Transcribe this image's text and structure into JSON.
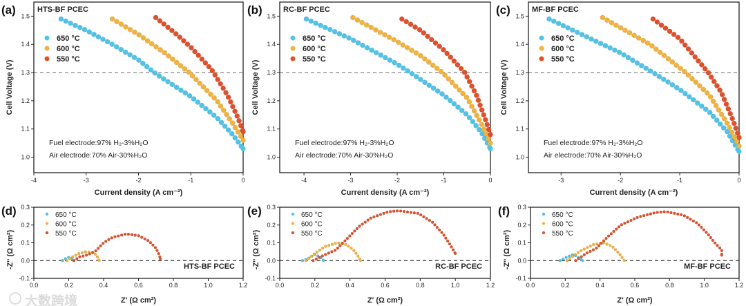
{
  "colors": {
    "650": "#4fc3e8",
    "600": "#f2b33d",
    "550": "#e0502a"
  },
  "watermark": "大数跨境",
  "chart_data": [
    {
      "id": "a",
      "panel_label": "(a)",
      "type": "scatter",
      "title": "HTS-BF PCEC",
      "xlabel": "Current density (A cm⁻²)",
      "ylabel": "Cell Voltage (V)",
      "xlim": [
        -4,
        0
      ],
      "ylim": [
        0.945,
        1.55
      ],
      "xticks": [
        "-4",
        "-3",
        "-2",
        "-1",
        "0"
      ],
      "yticks": [
        "1.0",
        "1.1",
        "1.2",
        "1.3",
        "1.4",
        "1.5"
      ],
      "reference_line": 1.3,
      "annotations": [
        "Fuel electrode:97% H₂-3%H₂O",
        "Air electrode:70% Air-30%H₂O"
      ],
      "series": [
        {
          "name": "650 °C",
          "key": "650",
          "points": [
            [
              -3.48,
              1.49
            ],
            [
              -3,
              1.45
            ],
            [
              -2.5,
              1.4
            ],
            [
              -2,
              1.345
            ],
            [
              -1.7,
              1.3
            ],
            [
              -1.5,
              1.275
            ],
            [
              -1,
              1.215
            ],
            [
              -0.5,
              1.14
            ],
            [
              -0.2,
              1.08
            ],
            [
              0,
              1.03
            ]
          ]
        },
        {
          "name": "600 °C",
          "key": "600",
          "points": [
            [
              -2.5,
              1.49
            ],
            [
              -2,
              1.435
            ],
            [
              -1.5,
              1.37
            ],
            [
              -1.03,
              1.3
            ],
            [
              -0.5,
              1.2
            ],
            [
              -0.2,
              1.12
            ],
            [
              0,
              1.06
            ]
          ]
        },
        {
          "name": "550 °C",
          "key": "550",
          "points": [
            [
              -1.67,
              1.495
            ],
            [
              -1.3,
              1.44
            ],
            [
              -1,
              1.39
            ],
            [
              -0.6,
              1.31
            ],
            [
              -0.3,
              1.22
            ],
            [
              -0.1,
              1.14
            ],
            [
              0,
              1.09
            ]
          ]
        }
      ]
    },
    {
      "id": "b",
      "panel_label": "(b)",
      "type": "scatter",
      "title": "RC-BF PCEC",
      "xlabel": "Current density (A cm⁻²)",
      "ylabel": "Cell Voltage (V)",
      "xlim": [
        -4.52,
        0
      ],
      "ylim": [
        0.945,
        1.55
      ],
      "xticks": [
        "-4",
        "-3",
        "-2",
        "-1",
        "0"
      ],
      "yticks": [
        "1.0",
        "1.1",
        "1.2",
        "1.3",
        "1.4",
        "1.5"
      ],
      "reference_line": 1.3,
      "annotations": [
        "Fuel electrode:97% H₂-3%H₂O",
        "Air electrode:70% Air-30%H₂O"
      ],
      "series": [
        {
          "name": "650 °C",
          "key": "650",
          "points": [
            [
              -3.95,
              1.49
            ],
            [
              -3,
              1.42
            ],
            [
              -2,
              1.33
            ],
            [
              -1.72,
              1.3
            ],
            [
              -1,
              1.22
            ],
            [
              -0.5,
              1.15
            ],
            [
              -0.2,
              1.09
            ],
            [
              0,
              1.03
            ]
          ]
        },
        {
          "name": "600 °C",
          "key": "600",
          "points": [
            [
              -2.95,
              1.495
            ],
            [
              -2,
              1.41
            ],
            [
              -1.5,
              1.36
            ],
            [
              -1.03,
              1.3
            ],
            [
              -0.5,
              1.21
            ],
            [
              -0.2,
              1.12
            ],
            [
              0,
              1.05
            ]
          ]
        },
        {
          "name": "550 °C",
          "key": "550",
          "points": [
            [
              -1.9,
              1.49
            ],
            [
              -1.5,
              1.45
            ],
            [
              -1,
              1.38
            ],
            [
              -0.55,
              1.3
            ],
            [
              -0.3,
              1.22
            ],
            [
              -0.1,
              1.13
            ],
            [
              0,
              1.08
            ]
          ]
        }
      ]
    },
    {
      "id": "c",
      "panel_label": "(c)",
      "type": "scatter",
      "title": "MF-BF PCEC",
      "xlabel": "Current density (A cm⁻²)",
      "ylabel": "Cell Voltage (V)",
      "xlim": [
        -3.55,
        0
      ],
      "ylim": [
        0.945,
        1.55
      ],
      "xticks": [
        "-3",
        "-2",
        "-1",
        "0"
      ],
      "yticks": [
        "1.0",
        "1.1",
        "1.2",
        "1.3",
        "1.4",
        "1.5"
      ],
      "reference_line": 1.3,
      "annotations": [
        "Fuel electrode:97% H₂-3%H₂O",
        "Air electrode:70% Air-30%H₂O"
      ],
      "series": [
        {
          "name": "650 °C",
          "key": "650",
          "points": [
            [
              -3.2,
              1.49
            ],
            [
              -2.5,
              1.42
            ],
            [
              -2,
              1.37
            ],
            [
              -1.45,
              1.3
            ],
            [
              -1,
              1.24
            ],
            [
              -0.5,
              1.16
            ],
            [
              -0.2,
              1.09
            ],
            [
              0,
              1.02
            ]
          ]
        },
        {
          "name": "600 °C",
          "key": "600",
          "points": [
            [
              -2.3,
              1.495
            ],
            [
              -1.5,
              1.4
            ],
            [
              -0.9,
              1.3
            ],
            [
              -0.5,
              1.22
            ],
            [
              -0.2,
              1.12
            ],
            [
              0,
              1.04
            ]
          ]
        },
        {
          "name": "550 °C",
          "key": "550",
          "points": [
            [
              -1.45,
              1.49
            ],
            [
              -1,
              1.42
            ],
            [
              -0.52,
              1.3
            ],
            [
              -0.3,
              1.23
            ],
            [
              -0.1,
              1.13
            ],
            [
              0,
              1.07
            ]
          ]
        }
      ]
    },
    {
      "id": "d",
      "panel_label": "(d)",
      "type": "scatter",
      "title": "HTS-BF PCEC",
      "xlabel": "Z' (Ω cm²)",
      "ylabel": "-Z'' (Ω cm²)",
      "xlim": [
        0,
        1.2
      ],
      "ylim": [
        -0.1,
        0.3
      ],
      "xticks": [
        "0.0",
        "0.2",
        "0.4",
        "0.6",
        "0.8",
        "1.0",
        "1.2"
      ],
      "yticks": [
        "-0.1",
        "0.0",
        "0.1",
        "0.2",
        "0.3"
      ],
      "reference_line": 0,
      "series": [
        {
          "name": "650 °C",
          "key": "650",
          "points": [
            [
              0.165,
              0
            ],
            [
              0.18,
              0.01
            ],
            [
              0.2,
              0.018
            ],
            [
              0.22,
              0.012
            ],
            [
              0.23,
              0
            ]
          ]
        },
        {
          "name": "600 °C",
          "key": "600",
          "points": [
            [
              0.19,
              0
            ],
            [
              0.22,
              0.02
            ],
            [
              0.26,
              0.04
            ],
            [
              0.3,
              0.05
            ],
            [
              0.34,
              0.045
            ],
            [
              0.36,
              0.03
            ],
            [
              0.375,
              0
            ]
          ]
        },
        {
          "name": "550 °C",
          "key": "550",
          "points": [
            [
              0.23,
              0
            ],
            [
              0.26,
              0.02
            ],
            [
              0.3,
              0.03
            ],
            [
              0.35,
              0.05
            ],
            [
              0.4,
              0.1
            ],
            [
              0.45,
              0.13
            ],
            [
              0.53,
              0.15
            ],
            [
              0.6,
              0.14
            ],
            [
              0.66,
              0.11
            ],
            [
              0.7,
              0.07
            ],
            [
              0.72,
              0.03
            ],
            [
              0.725,
              0.01
            ]
          ]
        }
      ]
    },
    {
      "id": "e",
      "panel_label": "(e)",
      "type": "scatter",
      "title": "RC-BF PCEC",
      "xlabel": "Z' (Ω cm²)",
      "ylabel": "-Z'' (Ω cm²)",
      "xlim": [
        0,
        1.2
      ],
      "ylim": [
        -0.1,
        0.3
      ],
      "xticks": [
        "0.0",
        "0.2",
        "0.4",
        "0.6",
        "0.8",
        "1.0",
        "1.2"
      ],
      "yticks": [
        "-0.1",
        "0.0",
        "0.1",
        "0.2",
        "0.3"
      ],
      "reference_line": 0,
      "series": [
        {
          "name": "650 °C",
          "key": "650",
          "points": [
            [
              0.13,
              0
            ],
            [
              0.16,
              0.01
            ],
            [
              0.2,
              0.035
            ],
            [
              0.23,
              0.02
            ],
            [
              0.25,
              0
            ]
          ]
        },
        {
          "name": "600 °C",
          "key": "600",
          "points": [
            [
              0.15,
              0
            ],
            [
              0.2,
              0.04
            ],
            [
              0.26,
              0.08
            ],
            [
              0.33,
              0.1
            ],
            [
              0.38,
              0.09
            ],
            [
              0.42,
              0.06
            ],
            [
              0.45,
              0.02
            ],
            [
              0.46,
              0
            ]
          ]
        },
        {
          "name": "550 °C",
          "key": "550",
          "points": [
            [
              0.19,
              0
            ],
            [
              0.25,
              0.03
            ],
            [
              0.32,
              0.06
            ],
            [
              0.38,
              0.12
            ],
            [
              0.45,
              0.19
            ],
            [
              0.52,
              0.24
            ],
            [
              0.62,
              0.275
            ],
            [
              0.68,
              0.28
            ],
            [
              0.79,
              0.265
            ],
            [
              0.87,
              0.215
            ],
            [
              0.93,
              0.15
            ],
            [
              0.97,
              0.09
            ],
            [
              1.0,
              0.04
            ]
          ]
        }
      ]
    },
    {
      "id": "f",
      "panel_label": "(f)",
      "type": "scatter",
      "title": "MF-BF PCEC",
      "xlabel": "Z' (Ω cm²)",
      "ylabel": "-Z'' (Ω cm²)",
      "xlim": [
        0,
        1.2
      ],
      "ylim": [
        -0.1,
        0.3
      ],
      "xticks": [
        "0.0",
        "0.2",
        "0.4",
        "0.6",
        "0.8",
        "1.0",
        "1.2"
      ],
      "yticks": [
        "-0.1",
        "0.0",
        "0.1",
        "0.2",
        "0.3"
      ],
      "reference_line": 0,
      "series": [
        {
          "name": "650 °C",
          "key": "650",
          "points": [
            [
              0.17,
              0
            ],
            [
              0.21,
              0.02
            ],
            [
              0.25,
              0.035
            ],
            [
              0.27,
              0.02
            ],
            [
              0.3,
              0
            ]
          ]
        },
        {
          "name": "600 °C",
          "key": "600",
          "points": [
            [
              0.21,
              0
            ],
            [
              0.28,
              0.05
            ],
            [
              0.36,
              0.09
            ],
            [
              0.42,
              0.1
            ],
            [
              0.47,
              0.08
            ],
            [
              0.51,
              0.04
            ],
            [
              0.54,
              0
            ]
          ]
        },
        {
          "name": "550 °C",
          "key": "550",
          "points": [
            [
              0.26,
              0
            ],
            [
              0.32,
              0.04
            ],
            [
              0.38,
              0.07
            ],
            [
              0.44,
              0.13
            ],
            [
              0.52,
              0.2
            ],
            [
              0.62,
              0.245
            ],
            [
              0.72,
              0.27
            ],
            [
              0.78,
              0.275
            ],
            [
              0.88,
              0.255
            ],
            [
              0.96,
              0.21
            ],
            [
              1.02,
              0.15
            ],
            [
              1.06,
              0.1
            ],
            [
              1.1,
              0.06
            ],
            [
              1.1,
              0.03
            ]
          ]
        }
      ]
    }
  ]
}
